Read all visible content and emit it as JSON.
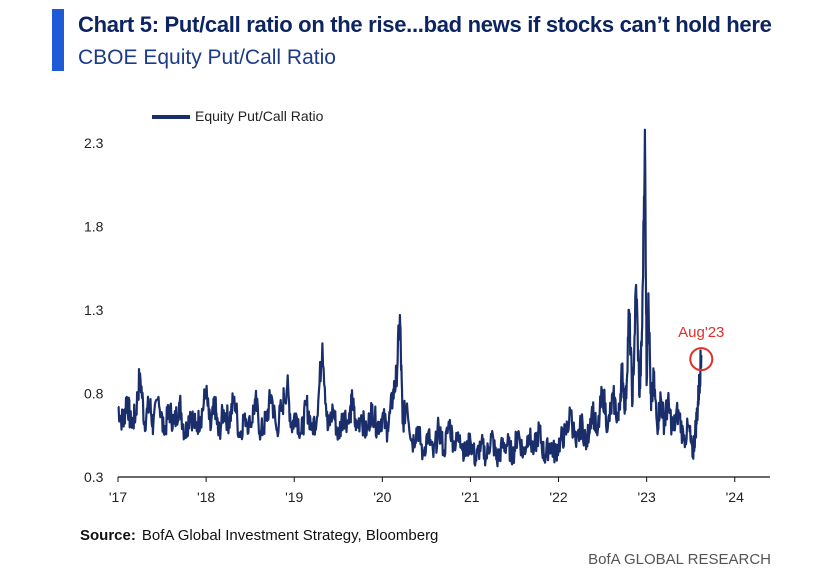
{
  "header": {
    "title": "Chart 5: Put/call ratio on the rise...bad news if stocks can’t hold here",
    "subtitle": "CBOE Equity Put/Call Ratio"
  },
  "source": {
    "label": "Source:",
    "text": "BofA Global Investment Strategy, Bloomberg"
  },
  "footer": {
    "brand": "BofA GLOBAL RESEARCH"
  },
  "colors": {
    "accent": "#1f5bd6",
    "series": "#1a2e6b",
    "annotation": "#e0302a"
  },
  "chart_data": {
    "type": "line",
    "title": "CBOE Equity Put/Call Ratio",
    "xlabel": "",
    "ylabel": "",
    "xlim": [
      2017.0,
      2024.4
    ],
    "ylim": [
      0.3,
      2.45
    ],
    "y_ticks": [
      0.3,
      0.8,
      1.3,
      1.8,
      2.3
    ],
    "y_tick_labels": [
      "0.3",
      "0.8",
      "1.3",
      "1.8",
      "2.3"
    ],
    "x_ticks": [
      2017,
      2018,
      2019,
      2020,
      2021,
      2022,
      2023,
      2024
    ],
    "x_tick_labels": [
      "'17",
      "'18",
      "'19",
      "'20",
      "'21",
      "'22",
      "'23",
      "'24"
    ],
    "grid": false,
    "legend": {
      "position": "top-left",
      "entries": [
        "Equity Put/Call Ratio"
      ]
    },
    "series": [
      {
        "name": "Equity Put/Call Ratio",
        "x": [
          2017.0,
          2017.06,
          2017.1,
          2017.15,
          2017.2,
          2017.25,
          2017.3,
          2017.36,
          2017.4,
          2017.46,
          2017.52,
          2017.58,
          2017.64,
          2017.7,
          2017.76,
          2017.82,
          2017.88,
          2017.94,
          2018.0,
          2018.05,
          2018.1,
          2018.14,
          2018.2,
          2018.26,
          2018.32,
          2018.38,
          2018.44,
          2018.5,
          2018.56,
          2018.62,
          2018.68,
          2018.74,
          2018.8,
          2018.86,
          2018.92,
          2018.97,
          2019.02,
          2019.08,
          2019.14,
          2019.2,
          2019.26,
          2019.32,
          2019.38,
          2019.44,
          2019.5,
          2019.56,
          2019.62,
          2019.66,
          2019.7,
          2019.76,
          2019.82,
          2019.88,
          2019.94,
          2020.0,
          2020.06,
          2020.12,
          2020.16,
          2020.2,
          2020.23,
          2020.28,
          2020.34,
          2020.4,
          2020.46,
          2020.52,
          2020.58,
          2020.64,
          2020.7,
          2020.76,
          2020.82,
          2020.88,
          2020.94,
          2021.0,
          2021.06,
          2021.12,
          2021.18,
          2021.24,
          2021.3,
          2021.36,
          2021.42,
          2021.48,
          2021.54,
          2021.6,
          2021.66,
          2021.72,
          2021.78,
          2021.84,
          2021.9,
          2021.96,
          2022.02,
          2022.08,
          2022.14,
          2022.2,
          2022.26,
          2022.32,
          2022.38,
          2022.44,
          2022.5,
          2022.56,
          2022.62,
          2022.68,
          2022.72,
          2022.76,
          2022.8,
          2022.84,
          2022.88,
          2022.92,
          2022.95,
          2022.98,
          2023.0,
          2023.02,
          2023.05,
          2023.08,
          2023.12,
          2023.16,
          2023.2,
          2023.24,
          2023.3,
          2023.36,
          2023.42,
          2023.48,
          2023.52,
          2023.55,
          2023.58,
          2023.6,
          2023.62
        ],
        "values": [
          0.72,
          0.62,
          0.78,
          0.6,
          0.68,
          0.92,
          0.63,
          0.74,
          0.6,
          0.78,
          0.56,
          0.7,
          0.62,
          0.75,
          0.55,
          0.69,
          0.6,
          0.66,
          0.8,
          0.58,
          0.74,
          0.55,
          0.7,
          0.63,
          0.78,
          0.54,
          0.68,
          0.6,
          0.76,
          0.56,
          0.64,
          0.79,
          0.58,
          0.72,
          0.85,
          0.6,
          0.68,
          0.56,
          0.73,
          0.6,
          0.66,
          1.1,
          0.58,
          0.7,
          0.55,
          0.68,
          0.62,
          0.76,
          0.58,
          0.67,
          0.55,
          0.72,
          0.6,
          0.66,
          0.58,
          0.78,
          0.9,
          1.27,
          0.62,
          0.74,
          0.5,
          0.6,
          0.44,
          0.56,
          0.42,
          0.6,
          0.46,
          0.62,
          0.48,
          0.55,
          0.43,
          0.52,
          0.4,
          0.5,
          0.42,
          0.55,
          0.4,
          0.48,
          0.5,
          0.42,
          0.57,
          0.44,
          0.55,
          0.46,
          0.58,
          0.42,
          0.5,
          0.44,
          0.52,
          0.56,
          0.68,
          0.48,
          0.62,
          0.5,
          0.72,
          0.55,
          0.82,
          0.6,
          0.78,
          0.64,
          0.95,
          0.7,
          1.3,
          0.75,
          1.45,
          0.78,
          1.2,
          2.38,
          0.85,
          1.4,
          0.7,
          0.88,
          0.6,
          0.78,
          0.62,
          0.74,
          0.58,
          0.7,
          0.52,
          0.6,
          0.42,
          0.56,
          0.72,
          0.88,
          1.03
        ]
      }
    ],
    "annotations": [
      {
        "text": "Aug'23",
        "x": 2023.62,
        "y": 1.03,
        "color": "#e0302a"
      }
    ]
  }
}
